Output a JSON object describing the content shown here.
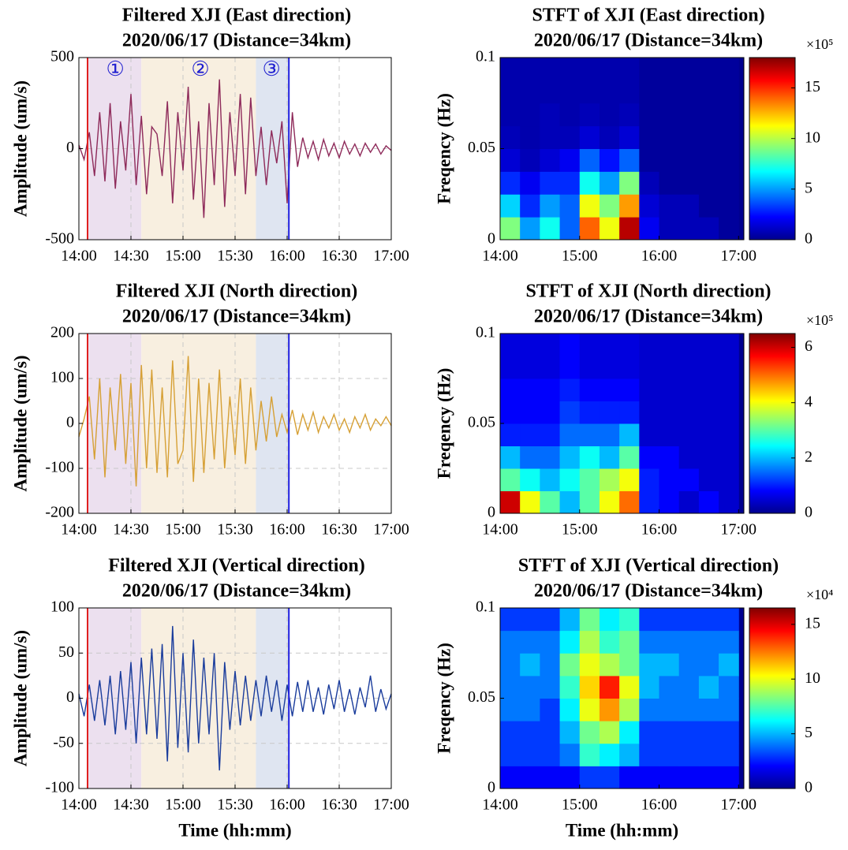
{
  "chart_data": [
    {
      "type": "line",
      "title": [
        "Filtered XJI (East direction)",
        "2020/06/17 (Distance=34km)"
      ],
      "ylabel": "Amplitude (um/s)",
      "color": "#8e2a5a",
      "grid": true,
      "xlim": [
        0,
        180
      ],
      "xticks": [
        {
          "value": 0,
          "label": "14:00"
        },
        {
          "value": 30,
          "label": "14:30"
        },
        {
          "value": 60,
          "label": "15:00"
        },
        {
          "value": 90,
          "label": "15:30"
        },
        {
          "value": 120,
          "label": "16:00"
        },
        {
          "value": 150,
          "label": "16:30"
        },
        {
          "value": 180,
          "label": "17:00"
        }
      ],
      "ylim": [
        -500,
        500
      ],
      "yticks": [
        -500,
        0,
        500
      ],
      "spans": [
        {
          "start": 5,
          "end": 36,
          "color": "#ece0ef"
        },
        {
          "start": 36,
          "end": 102,
          "color": "#f8efe0"
        },
        {
          "start": 102,
          "end": 121,
          "color": "#dfe5f1"
        }
      ],
      "markers": [
        {
          "x": 5,
          "color": "#e02020"
        },
        {
          "x": 121,
          "color": "#1f1fe0"
        }
      ],
      "annotations": [
        {
          "text": "①",
          "x": 21
        },
        {
          "text": "②",
          "x": 70
        },
        {
          "text": "③",
          "x": 111
        }
      ],
      "x": [
        0,
        3,
        6,
        9,
        12,
        15,
        18,
        21,
        24,
        27,
        30,
        33,
        36,
        39,
        42,
        45,
        48,
        51,
        54,
        57,
        60,
        63,
        66,
        69,
        72,
        75,
        78,
        81,
        84,
        87,
        90,
        93,
        96,
        99,
        102,
        105,
        108,
        111,
        114,
        117,
        120,
        123,
        126,
        129,
        132,
        135,
        138,
        141,
        144,
        147,
        150,
        153,
        156,
        159,
        162,
        165,
        168,
        171,
        174,
        177,
        180
      ],
      "values": [
        20,
        -60,
        90,
        -150,
        200,
        -180,
        250,
        -220,
        150,
        -120,
        300,
        -200,
        180,
        -250,
        120,
        80,
        -150,
        260,
        -300,
        200,
        -120,
        340,
        -280,
        150,
        -380,
        250,
        -200,
        380,
        -320,
        200,
        -150,
        300,
        -250,
        280,
        -150,
        120,
        -200,
        100,
        -80,
        150,
        -300,
        200,
        -100,
        60,
        -50,
        40,
        -60,
        50,
        -40,
        30,
        -50,
        40,
        -30,
        25,
        -40,
        30,
        -20,
        25,
        -30,
        15,
        -10
      ]
    },
    {
      "type": "heatmap",
      "title": [
        "STFT of XJI (East direction)",
        "2020/06/17 (Distance=34km)"
      ],
      "ylabel": "Freqency (Hz)",
      "background": "#00008f",
      "xlim": [
        0,
        184
      ],
      "xticks": [
        {
          "value": 0,
          "label": "14:00"
        },
        {
          "value": 60,
          "label": "15:00"
        },
        {
          "value": 120,
          "label": "16:00"
        },
        {
          "value": 180,
          "label": "17:00"
        }
      ],
      "ylim": [
        0,
        0.1
      ],
      "yticks": [
        0,
        0.05,
        0.1
      ],
      "zlim": [
        0,
        18
      ],
      "zticks": [
        0,
        5,
        10,
        15
      ],
      "zmultiplier": "×10⁵",
      "xbins": [
        0,
        15,
        30,
        45,
        60,
        75,
        90,
        105,
        120,
        135,
        150,
        165,
        180
      ],
      "ybins": [
        0,
        0.0125,
        0.025,
        0.0375,
        0.05,
        0.0625,
        0.075,
        0.0875,
        0.1
      ],
      "z": [
        [
          9,
          5,
          7,
          4,
          14,
          11,
          17,
          2,
          1,
          1,
          1,
          0.5
        ],
        [
          6,
          3,
          5,
          4,
          11,
          9,
          13,
          1.5,
          1,
          1,
          0.5,
          0.5
        ],
        [
          3,
          2,
          3,
          3,
          7,
          5,
          9,
          1,
          0.5,
          0.5,
          0.5,
          0.5
        ],
        [
          1.5,
          1,
          1.5,
          2,
          4,
          2.5,
          4,
          0.5,
          0.5,
          0.5,
          0.5,
          0.5
        ],
        [
          1,
          0.8,
          1,
          1,
          1.5,
          1,
          1.5,
          0.5,
          0.5,
          0.5,
          0.5,
          0.5
        ],
        [
          0.8,
          0.8,
          1,
          0.8,
          1,
          0.8,
          1,
          0.5,
          0.5,
          0.5,
          0.5,
          0.5
        ],
        [
          0.8,
          0.8,
          0.8,
          0.8,
          0.8,
          0.8,
          0.8,
          0.5,
          0.5,
          0.5,
          0.5,
          0.5
        ],
        [
          0.8,
          0.8,
          0.8,
          0.8,
          0.8,
          0.8,
          0.8,
          0.5,
          0.5,
          0.5,
          0.5,
          0.5
        ]
      ]
    },
    {
      "type": "line",
      "title": [
        "Filtered XJI (North direction)",
        "2020/06/17 (Distance=34km)"
      ],
      "ylabel": "Amplitude (um/s)",
      "color": "#d6a035",
      "grid": true,
      "xlim": [
        0,
        180
      ],
      "xticks": [
        {
          "value": 0,
          "label": "14:00"
        },
        {
          "value": 30,
          "label": "14:30"
        },
        {
          "value": 60,
          "label": "15:00"
        },
        {
          "value": 90,
          "label": "15:30"
        },
        {
          "value": 120,
          "label": "16:00"
        },
        {
          "value": 150,
          "label": "16:30"
        },
        {
          "value": 180,
          "label": "17:00"
        }
      ],
      "ylim": [
        -200,
        200
      ],
      "yticks": [
        -200,
        -100,
        0,
        100,
        200
      ],
      "spans": [
        {
          "start": 5,
          "end": 36,
          "color": "#ece0ef"
        },
        {
          "start": 36,
          "end": 102,
          "color": "#f8efe0"
        },
        {
          "start": 102,
          "end": 121,
          "color": "#dfe5f1"
        }
      ],
      "markers": [
        {
          "x": 5,
          "color": "#e02020"
        },
        {
          "x": 121,
          "color": "#1f1fe0"
        }
      ],
      "x": [
        0,
        3,
        6,
        9,
        12,
        15,
        18,
        21,
        24,
        27,
        30,
        33,
        36,
        39,
        42,
        45,
        48,
        51,
        54,
        57,
        60,
        63,
        66,
        69,
        72,
        75,
        78,
        81,
        84,
        87,
        90,
        93,
        96,
        99,
        102,
        105,
        108,
        111,
        114,
        117,
        120,
        123,
        126,
        129,
        132,
        135,
        138,
        141,
        144,
        147,
        150,
        153,
        156,
        159,
        162,
        165,
        168,
        171,
        174,
        177,
        180
      ],
      "values": [
        -30,
        10,
        60,
        -80,
        100,
        -120,
        80,
        -60,
        110,
        -90,
        90,
        -140,
        130,
        -100,
        120,
        -110,
        80,
        -120,
        140,
        -90,
        -60,
        150,
        -130,
        100,
        -110,
        90,
        -80,
        120,
        -100,
        60,
        -70,
        100,
        -90,
        80,
        -60,
        50,
        -40,
        60,
        -30,
        20,
        -20,
        30,
        -25,
        20,
        -15,
        25,
        -20,
        15,
        -10,
        20,
        -15,
        10,
        -20,
        15,
        -10,
        20,
        -15,
        10,
        -5,
        15,
        -5
      ]
    },
    {
      "type": "heatmap",
      "title": [
        "STFT of XJI (North direction)",
        "2020/06/17 (Distance=34km)"
      ],
      "ylabel": "Freqency (Hz)",
      "background": "#00008f",
      "xlim": [
        0,
        184
      ],
      "xticks": [
        {
          "value": 0,
          "label": "14:00"
        },
        {
          "value": 60,
          "label": "15:00"
        },
        {
          "value": 120,
          "label": "16:00"
        },
        {
          "value": 180,
          "label": "17:00"
        }
      ],
      "ylim": [
        0,
        0.1
      ],
      "yticks": [
        0,
        0.05,
        0.1
      ],
      "zlim": [
        0,
        6.5
      ],
      "zticks": [
        0,
        2,
        4,
        6
      ],
      "zmultiplier": "×10⁵",
      "xbins": [
        0,
        15,
        30,
        45,
        60,
        75,
        90,
        105,
        120,
        135,
        150,
        165,
        180
      ],
      "ybins": [
        0,
        0.0125,
        0.025,
        0.0375,
        0.05,
        0.0625,
        0.075,
        0.0875,
        0.1
      ],
      "z": [
        [
          6,
          4,
          3,
          2,
          3,
          4,
          5,
          1,
          0.8,
          0.5,
          0.8,
          0.5
        ],
        [
          3,
          2.5,
          2,
          2.5,
          3,
          3.5,
          4,
          1,
          0.8,
          0.8,
          0.5,
          0.5
        ],
        [
          2,
          1.5,
          1.5,
          2,
          2.5,
          2,
          3,
          0.8,
          0.8,
          0.5,
          0.5,
          0.5
        ],
        [
          1,
          1,
          1,
          1.5,
          1.5,
          1.5,
          2,
          0.5,
          0.5,
          0.5,
          0.5,
          0.5
        ],
        [
          0.8,
          0.8,
          0.8,
          1.2,
          1,
          1,
          1,
          0.5,
          0.5,
          0.5,
          0.5,
          0.5
        ],
        [
          0.8,
          0.8,
          0.8,
          1,
          0.8,
          0.8,
          0.8,
          0.5,
          0.5,
          0.5,
          0.5,
          0.5
        ],
        [
          0.6,
          0.6,
          0.6,
          0.8,
          0.6,
          0.6,
          0.6,
          0.5,
          0.5,
          0.5,
          0.5,
          0.5
        ],
        [
          0.6,
          0.6,
          0.6,
          0.8,
          0.6,
          0.6,
          0.6,
          0.5,
          0.5,
          0.5,
          0.5,
          0.5
        ]
      ]
    },
    {
      "type": "line",
      "title": [
        "Filtered XJI (Vertical direction)",
        "2020/06/17 (Distance=34km)"
      ],
      "ylabel": "Amplitude (um/s)",
      "xlabel": "Time (hh:mm)",
      "color": "#1a3c9c",
      "grid": true,
      "xlim": [
        0,
        180
      ],
      "xticks": [
        {
          "value": 0,
          "label": "14:00"
        },
        {
          "value": 30,
          "label": "14:30"
        },
        {
          "value": 60,
          "label": "15:00"
        },
        {
          "value": 90,
          "label": "15:30"
        },
        {
          "value": 120,
          "label": "16:00"
        },
        {
          "value": 150,
          "label": "16:30"
        },
        {
          "value": 180,
          "label": "17:00"
        }
      ],
      "ylim": [
        -100,
        100
      ],
      "yticks": [
        -100,
        -50,
        0,
        50,
        100
      ],
      "spans": [
        {
          "start": 5,
          "end": 36,
          "color": "#ece0ef"
        },
        {
          "start": 36,
          "end": 102,
          "color": "#f8efe0"
        },
        {
          "start": 102,
          "end": 121,
          "color": "#dfe5f1"
        }
      ],
      "markers": [
        {
          "x": 5,
          "color": "#e02020"
        },
        {
          "x": 121,
          "color": "#1f1fe0"
        }
      ],
      "x": [
        0,
        3,
        6,
        9,
        12,
        15,
        18,
        21,
        24,
        27,
        30,
        33,
        36,
        39,
        42,
        45,
        48,
        51,
        54,
        57,
        60,
        63,
        66,
        69,
        72,
        75,
        78,
        81,
        84,
        87,
        90,
        93,
        96,
        99,
        102,
        105,
        108,
        111,
        114,
        117,
        120,
        123,
        126,
        129,
        132,
        135,
        138,
        141,
        144,
        147,
        150,
        153,
        156,
        159,
        162,
        165,
        168,
        171,
        174,
        177,
        180
      ],
      "values": [
        5,
        -20,
        15,
        -25,
        20,
        -30,
        25,
        -40,
        30,
        -35,
        40,
        -50,
        45,
        -40,
        55,
        -45,
        60,
        -70,
        80,
        -55,
        50,
        -60,
        65,
        -50,
        45,
        -40,
        50,
        -80,
        40,
        -35,
        30,
        -30,
        25,
        -25,
        20,
        -20,
        25,
        -15,
        20,
        -25,
        15,
        -20,
        18,
        -15,
        20,
        -15,
        12,
        -18,
        15,
        -12,
        20,
        -15,
        10,
        -18,
        12,
        -10,
        25,
        -15,
        10,
        -12,
        5
      ]
    },
    {
      "type": "heatmap",
      "title": [
        "STFT of XJI (Vertical direction)",
        "2020/06/17 (Distance=34km)"
      ],
      "ylabel": "Freqency (Hz)",
      "xlabel": "Time (hh:mm)",
      "background": "#00008f",
      "xlim": [
        0,
        184
      ],
      "xticks": [
        {
          "value": 0,
          "label": "14:00"
        },
        {
          "value": 60,
          "label": "15:00"
        },
        {
          "value": 120,
          "label": "16:00"
        },
        {
          "value": 180,
          "label": "17:00"
        }
      ],
      "ylim": [
        0,
        0.1
      ],
      "yticks": [
        0,
        0.05,
        0.1
      ],
      "zlim": [
        0,
        16.5
      ],
      "zticks": [
        0,
        5,
        10,
        15
      ],
      "zmultiplier": "×10⁴",
      "xbins": [
        0,
        15,
        30,
        45,
        60,
        75,
        90,
        105,
        120,
        135,
        150,
        165,
        180
      ],
      "ybins": [
        0,
        0.0125,
        0.025,
        0.0375,
        0.05,
        0.0625,
        0.075,
        0.0875,
        0.1
      ],
      "z": [
        [
          2,
          2,
          2,
          2,
          3,
          3,
          2,
          2,
          2,
          2,
          2,
          2
        ],
        [
          3,
          3,
          3,
          4,
          7,
          6,
          5,
          3,
          3,
          3,
          3,
          3
        ],
        [
          3,
          3,
          3,
          5,
          8,
          9,
          6,
          3,
          3,
          3,
          3,
          3
        ],
        [
          4,
          4,
          3,
          6,
          10,
          12,
          9,
          4,
          4,
          4,
          4,
          4
        ],
        [
          4,
          4,
          4,
          7,
          11,
          14,
          10,
          5,
          4,
          4,
          5,
          4
        ],
        [
          4,
          5,
          4,
          8,
          10,
          9,
          8,
          5,
          5,
          4,
          4,
          5
        ],
        [
          4,
          4,
          4,
          6,
          9,
          7,
          8,
          4,
          4,
          4,
          4,
          4
        ],
        [
          3,
          3,
          3,
          5,
          8,
          6,
          7,
          3,
          3,
          3,
          3,
          3
        ]
      ]
    }
  ]
}
